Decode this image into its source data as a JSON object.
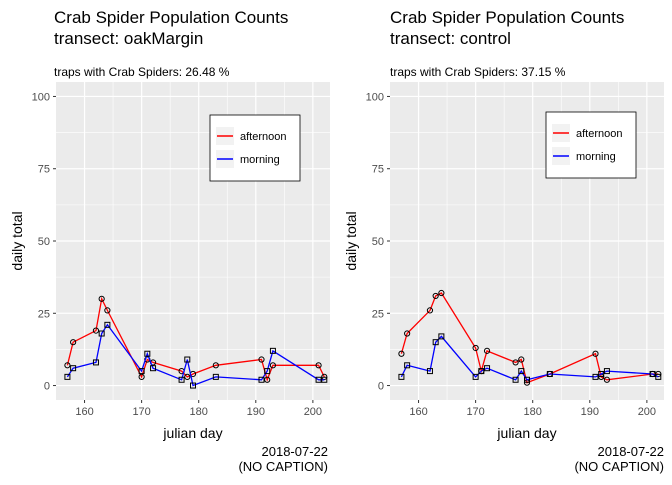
{
  "colors": {
    "afternoon": "#ff0000",
    "morning": "#0000ff",
    "panel_bg": "#ebebeb",
    "grid": "#ffffff"
  },
  "chart_data": [
    {
      "type": "line",
      "title": "Crab Spider Population Counts",
      "subtitle": "transect: oakMargin",
      "annotation": "traps with Crab Spiders: 26.48 %",
      "xlabel": "julian day",
      "ylabel": "daily total",
      "xlim": [
        155,
        203
      ],
      "ylim": [
        -5,
        105
      ],
      "xticks": [
        160,
        170,
        180,
        190,
        200
      ],
      "yticks": [
        0,
        25,
        50,
        75,
        100
      ],
      "grid": true,
      "legend_position": "top-right",
      "caption_date": "2018-07-22",
      "caption_text": "(NO CAPTION)",
      "series": [
        {
          "name": "afternoon",
          "marker": "circle",
          "x": [
            157,
            158,
            162,
            163,
            164,
            170,
            171,
            172,
            177,
            178,
            179,
            183,
            191,
            192,
            193,
            201,
            202
          ],
          "y": [
            7,
            15,
            19,
            30,
            26,
            3,
            9,
            8,
            5,
            3,
            4,
            7,
            9,
            2,
            7,
            7,
            3
          ]
        },
        {
          "name": "morning",
          "marker": "square",
          "x": [
            157,
            158,
            162,
            163,
            164,
            170,
            171,
            172,
            177,
            178,
            179,
            183,
            191,
            192,
            193,
            201,
            202
          ],
          "y": [
            3,
            6,
            8,
            18,
            21,
            5,
            11,
            6,
            2,
            9,
            0,
            3,
            2,
            5,
            12,
            2,
            2
          ]
        }
      ]
    },
    {
      "type": "line",
      "title": "Crab Spider Population Counts",
      "subtitle": "transect: control",
      "annotation": "traps with Crab Spiders: 37.15 %",
      "xlabel": "julian day",
      "ylabel": "daily total",
      "xlim": [
        155,
        203
      ],
      "ylim": [
        -5,
        105
      ],
      "xticks": [
        160,
        170,
        180,
        190,
        200
      ],
      "yticks": [
        0,
        25,
        50,
        75,
        100
      ],
      "grid": true,
      "legend_position": "top-right",
      "caption_date": "2018-07-22",
      "caption_text": "(NO CAPTION)",
      "series": [
        {
          "name": "afternoon",
          "marker": "circle",
          "x": [
            157,
            158,
            162,
            163,
            164,
            170,
            171,
            172,
            177,
            178,
            179,
            183,
            191,
            192,
            193,
            201,
            202
          ],
          "y": [
            11,
            18,
            26,
            31,
            32,
            13,
            5,
            12,
            8,
            9,
            1,
            4,
            11,
            3,
            2,
            4,
            4
          ]
        },
        {
          "name": "morning",
          "marker": "square",
          "x": [
            157,
            158,
            162,
            163,
            164,
            170,
            171,
            172,
            177,
            178,
            179,
            183,
            191,
            192,
            193,
            201,
            202
          ],
          "y": [
            3,
            7,
            5,
            15,
            17,
            3,
            5,
            6,
            2,
            5,
            2,
            4,
            3,
            4,
            5,
            4,
            3
          ]
        }
      ]
    }
  ]
}
